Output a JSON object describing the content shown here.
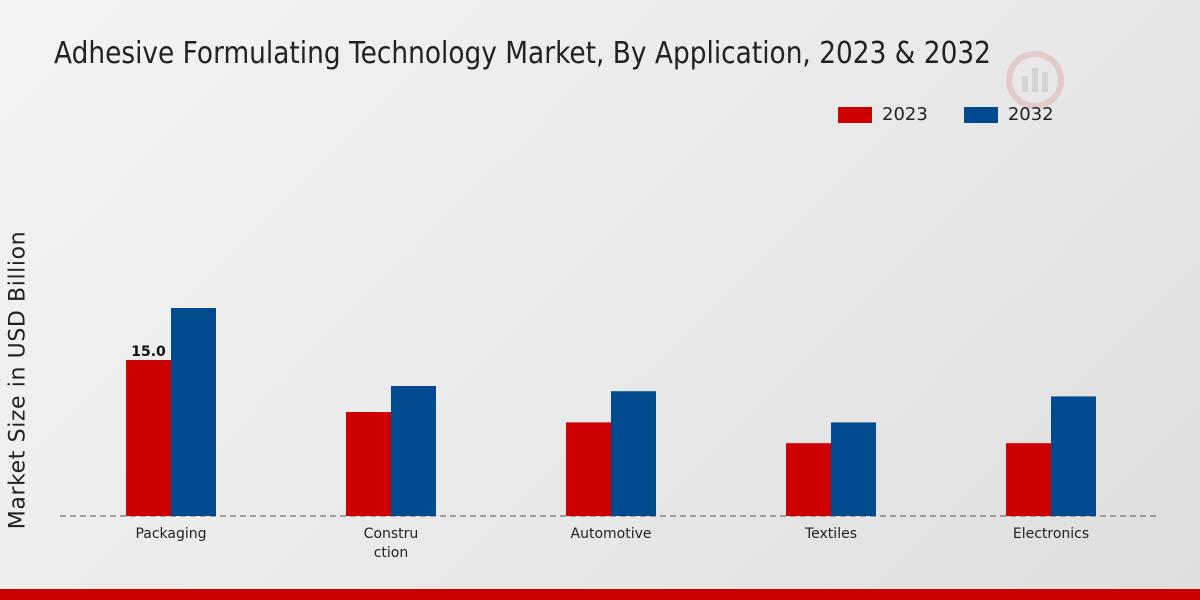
{
  "chart_data": {
    "type": "bar",
    "title": "Adhesive Formulating Technology Market, By Application, 2023 & 2032",
    "ylabel": "Market Size in USD Billion",
    "xlabel": "",
    "categories": [
      "Packaging",
      "Constru\nction",
      "Automotive",
      "Textiles",
      "Electronics"
    ],
    "series": [
      {
        "name": "2023",
        "color": "#cc0000",
        "values": [
          15.0,
          10.0,
          9.0,
          7.0,
          7.0
        ]
      },
      {
        "name": "2032",
        "color": "#004a8f",
        "values": [
          20.0,
          12.5,
          12.0,
          9.0,
          11.5
        ]
      }
    ],
    "data_labels": [
      {
        "series": 0,
        "index": 0,
        "text": "15.0"
      }
    ],
    "ylim": [
      0,
      30
    ],
    "grid": false,
    "legend_position": "top-right"
  },
  "legend": {
    "items": [
      {
        "label": "2023",
        "color": "#cc0000"
      },
      {
        "label": "2032",
        "color": "#004a8f"
      }
    ]
  },
  "footer": {
    "color": "#cc0000"
  }
}
